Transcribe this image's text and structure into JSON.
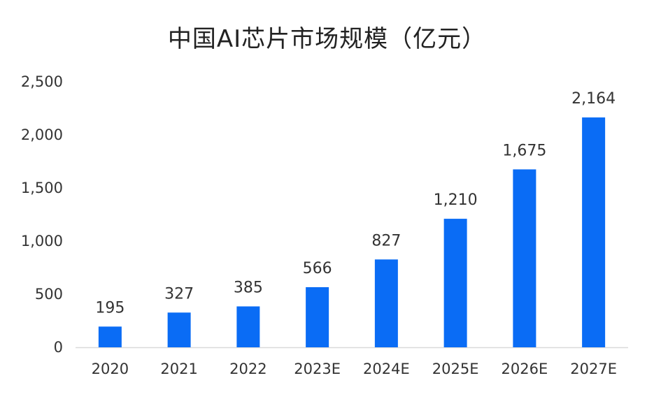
{
  "chart_data": {
    "type": "bar",
    "title": "中国AI芯片市场规模（亿元）",
    "categories": [
      "2020",
      "2021",
      "2022",
      "2023E",
      "2024E",
      "2025E",
      "2026E",
      "2027E"
    ],
    "values": [
      195,
      327,
      385,
      566,
      827,
      1210,
      1675,
      2164
    ],
    "data_labels": [
      "195",
      "327",
      "385",
      "566",
      "827",
      "1,210",
      "1,675",
      "2,164"
    ],
    "yticks": [
      0,
      500,
      1000,
      1500,
      2000,
      2500
    ],
    "ytick_labels": [
      "0",
      "500",
      "1,000",
      "1,500",
      "2,000",
      "2,500"
    ],
    "ylim": [
      0,
      2500
    ],
    "xlabel": "",
    "ylabel": "",
    "grid": false,
    "bar_color": "#0A6CF5",
    "axis_color": "#D9D9D9"
  }
}
